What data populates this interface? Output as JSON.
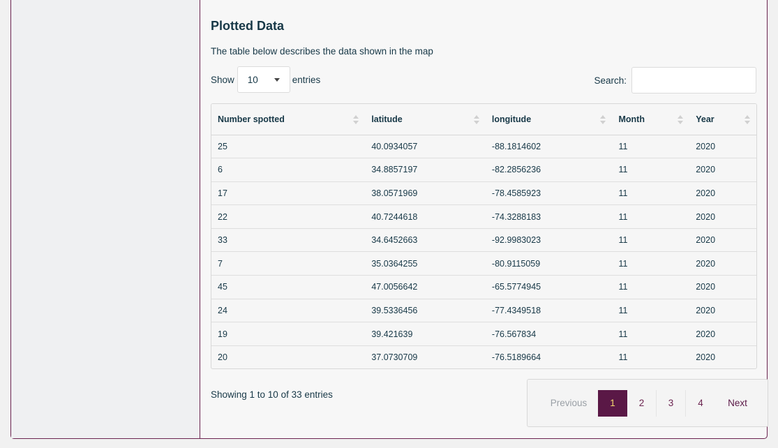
{
  "section": {
    "title": "Plotted Data",
    "description": "The table below describes the data shown in the map"
  },
  "length_control": {
    "prefix": "Show",
    "value": "10",
    "suffix": "entries"
  },
  "search": {
    "label": "Search:",
    "value": "",
    "placeholder": ""
  },
  "table": {
    "columns": [
      "Number spotted",
      "latitude",
      "longitude",
      "Month",
      "Year"
    ],
    "rows": [
      [
        "25",
        "40.0934057",
        "-88.1814602",
        "11",
        "2020"
      ],
      [
        "6",
        "34.8857197",
        "-82.2856236",
        "11",
        "2020"
      ],
      [
        "17",
        "38.0571969",
        "-78.4585923",
        "11",
        "2020"
      ],
      [
        "22",
        "40.7244618",
        "-74.3288183",
        "11",
        "2020"
      ],
      [
        "33",
        "34.6452663",
        "-92.9983023",
        "11",
        "2020"
      ],
      [
        "7",
        "35.0364255",
        "-80.9115059",
        "11",
        "2020"
      ],
      [
        "45",
        "47.0056642",
        "-65.5774945",
        "11",
        "2020"
      ],
      [
        "24",
        "39.5336456",
        "-77.4349518",
        "11",
        "2020"
      ],
      [
        "19",
        "39.421639",
        "-76.567834",
        "11",
        "2020"
      ],
      [
        "20",
        "37.0730709",
        "-76.5189664",
        "11",
        "2020"
      ]
    ]
  },
  "info": "Showing 1 to 10 of 33 entries",
  "pagination": {
    "previous": "Previous",
    "pages": [
      "1",
      "2",
      "3",
      "4"
    ],
    "active": "1",
    "next": "Next"
  },
  "colors": {
    "accent": "#5a1846",
    "active_text": "#f4d86e",
    "border": "#6b2450"
  }
}
